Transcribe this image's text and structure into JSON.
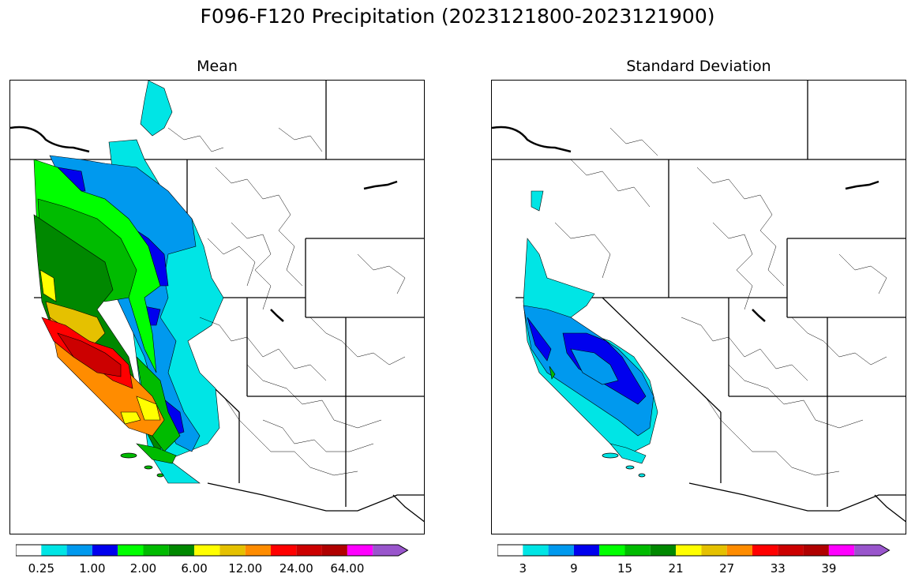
{
  "title": "F096-F120 Precipitation (2023121800-2023121900)",
  "panels": [
    {
      "title": "Mean",
      "tick_labels": [
        "0.25",
        "1.00",
        "2.00",
        "6.00",
        "12.00",
        "24.00",
        "64.00"
      ]
    },
    {
      "title": "Standard Deviation",
      "tick_labels": [
        "3",
        "9",
        "15",
        "21",
        "27",
        "33",
        "39"
      ]
    }
  ],
  "colorbar_colors": [
    "#ffffff",
    "#00e5e5",
    "#0099ee",
    "#0000ee",
    "#00ff00",
    "#00bb00",
    "#008800",
    "#ffff00",
    "#e5c100",
    "#ff8c00",
    "#ff0000",
    "#cc0000",
    "#b00000",
    "#ff00ff",
    "#9955cc"
  ]
}
